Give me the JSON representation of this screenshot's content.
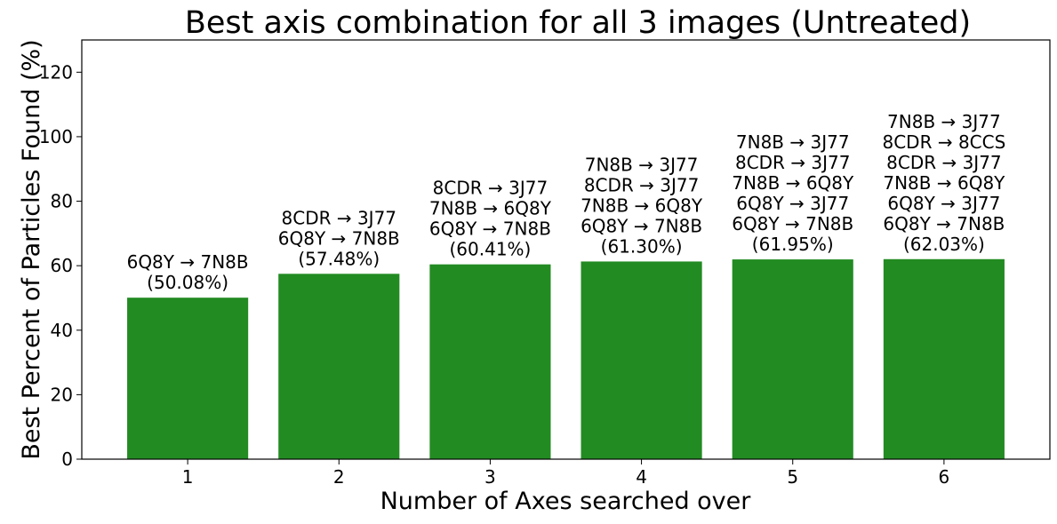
{
  "chart_data": {
    "type": "bar",
    "title": "Best axis combination for all 3 images (Untreated)",
    "xlabel": "Number of Axes searched over",
    "ylabel": "Best Percent of Particles Found (%)",
    "categories": [
      "1",
      "2",
      "3",
      "4",
      "5",
      "6"
    ],
    "values": [
      50.08,
      57.48,
      60.41,
      61.3,
      61.95,
      62.03
    ],
    "ylim": [
      0,
      130
    ],
    "yticks": [
      0,
      20,
      40,
      60,
      80,
      100,
      120
    ],
    "bar_color": "#228b22",
    "grid": false,
    "bar_labels": [
      [
        "6Q8Y → 7N8B",
        "(50.08%)"
      ],
      [
        "8CDR → 3J77",
        "6Q8Y → 7N8B",
        "(57.48%)"
      ],
      [
        "8CDR → 3J77",
        "7N8B → 6Q8Y",
        "6Q8Y → 7N8B",
        "(60.41%)"
      ],
      [
        "7N8B → 3J77",
        "8CDR → 3J77",
        "7N8B → 6Q8Y",
        "6Q8Y → 7N8B",
        "(61.30%)"
      ],
      [
        "7N8B → 3J77",
        "8CDR → 3J77",
        "7N8B → 6Q8Y",
        "6Q8Y → 3J77",
        "6Q8Y → 7N8B",
        "(61.95%)"
      ],
      [
        "7N8B → 3J77",
        "8CDR → 8CCS",
        "8CDR → 3J77",
        "7N8B → 6Q8Y",
        "6Q8Y → 3J77",
        "6Q8Y → 7N8B",
        "(62.03%)"
      ]
    ]
  }
}
